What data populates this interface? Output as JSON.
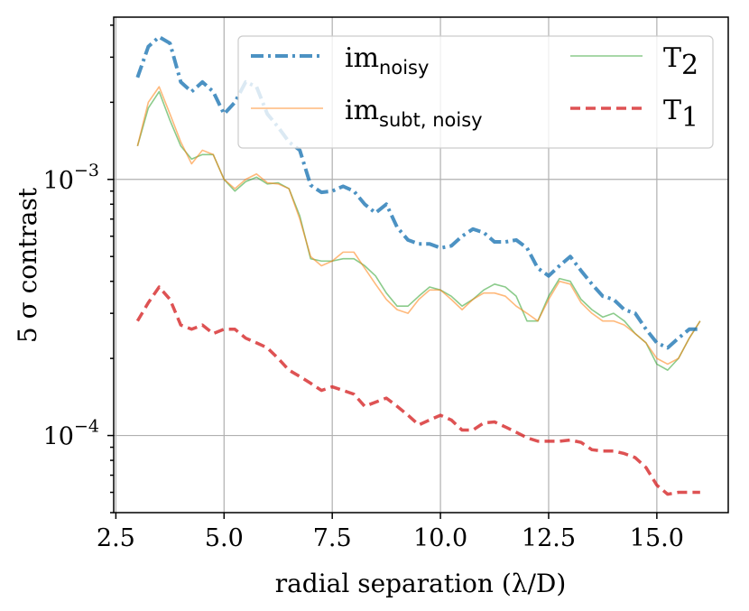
{
  "chart_data": {
    "type": "line",
    "yscale": "log",
    "xlabel": "radial separation (λ/D)",
    "ylabel": "5 σ contrast",
    "xlim": [
      2.45,
      16.65
    ],
    "ylim": [
      5e-05,
      0.0043
    ],
    "x_ticks": [
      {
        "value": 2.5,
        "label": "2.5"
      },
      {
        "value": 5.0,
        "label": "5.0"
      },
      {
        "value": 7.5,
        "label": "7.5"
      },
      {
        "value": 10.0,
        "label": "10.0"
      },
      {
        "value": 12.5,
        "label": "12.5"
      },
      {
        "value": 15.0,
        "label": "15.0"
      }
    ],
    "y_major_ticks": [
      {
        "value": 0.0001,
        "base": "10",
        "exp": "−4"
      },
      {
        "value": 0.001,
        "base": "10",
        "exp": "−3"
      }
    ],
    "y_minor_ticks": [
      5e-05,
      6e-05,
      7e-05,
      8e-05,
      9e-05,
      0.0002,
      0.0003,
      0.0004,
      0.0005,
      0.0006,
      0.0007,
      0.0008,
      0.0009,
      0.002,
      0.003,
      0.004
    ],
    "grid": true,
    "legend_location": "top-right",
    "x": [
      3.0,
      3.25,
      3.5,
      3.75,
      4.0,
      4.25,
      4.5,
      4.75,
      5.0,
      5.25,
      5.5,
      5.75,
      6.0,
      6.25,
      6.5,
      6.75,
      7.0,
      7.25,
      7.5,
      7.75,
      8.0,
      8.25,
      8.5,
      8.75,
      9.0,
      9.25,
      9.5,
      9.75,
      10.0,
      10.25,
      10.5,
      10.75,
      11.0,
      11.25,
      11.5,
      11.75,
      12.0,
      12.25,
      12.5,
      12.75,
      13.0,
      13.25,
      13.5,
      13.75,
      14.0,
      14.25,
      14.5,
      14.75,
      15.0,
      15.25,
      15.5,
      15.75,
      16.0
    ],
    "series": [
      {
        "name": "im",
        "subscript": "noisy",
        "color": "#1f77b4",
        "style": "dashdot",
        "values": [
          0.0025,
          0.0033,
          0.0036,
          0.0034,
          0.0024,
          0.0022,
          0.0024,
          0.0022,
          0.0018,
          0.002,
          0.0024,
          0.0023,
          0.0018,
          0.0016,
          0.0014,
          0.0013,
          0.00095,
          0.00089,
          0.0009,
          0.00094,
          0.0009,
          0.0008,
          0.00074,
          0.0008,
          0.00065,
          0.00058,
          0.00056,
          0.00056,
          0.00054,
          0.00055,
          0.0006,
          0.00064,
          0.00062,
          0.00057,
          0.00057,
          0.00058,
          0.00054,
          0.00045,
          0.00042,
          0.00046,
          0.0005,
          0.00044,
          0.00039,
          0.00035,
          0.00034,
          0.00031,
          0.0003,
          0.00026,
          0.00023,
          0.00022,
          0.00024,
          0.00026,
          0.00026
        ]
      },
      {
        "name": "im",
        "subscript": "subt, noisy",
        "color": "#ff7f0e",
        "style": "solid",
        "values": [
          0.00135,
          0.002,
          0.0023,
          0.0018,
          0.0014,
          0.00115,
          0.0013,
          0.00125,
          0.001,
          0.00092,
          0.001,
          0.00105,
          0.00097,
          0.00096,
          0.00092,
          0.0007,
          0.0005,
          0.00046,
          0.00048,
          0.00052,
          0.00052,
          0.00045,
          0.00039,
          0.00034,
          0.00031,
          0.0003,
          0.00034,
          0.00037,
          0.00037,
          0.00034,
          0.00031,
          0.00034,
          0.00036,
          0.00036,
          0.00035,
          0.00032,
          0.0003,
          0.00028,
          0.00034,
          0.0004,
          0.00039,
          0.00033,
          0.0003,
          0.00028,
          0.00028,
          0.00027,
          0.00025,
          0.00023,
          0.0002,
          0.00019,
          0.0002,
          0.00024,
          0.00028
        ]
      },
      {
        "name": "T",
        "subscript": "2",
        "color": "#2ca02c",
        "style": "solid",
        "values": [
          0.00135,
          0.0019,
          0.0022,
          0.0017,
          0.00135,
          0.0012,
          0.00125,
          0.00125,
          0.001,
          0.0009,
          0.00098,
          0.00102,
          0.00096,
          0.00097,
          0.00092,
          0.00072,
          0.00049,
          0.00048,
          0.00048,
          0.00049,
          0.00049,
          0.00046,
          0.00042,
          0.00036,
          0.00032,
          0.00032,
          0.00035,
          0.00038,
          0.00037,
          0.00035,
          0.00032,
          0.00034,
          0.00037,
          0.00039,
          0.00038,
          0.00035,
          0.00028,
          0.00028,
          0.00035,
          0.00041,
          0.0004,
          0.00034,
          0.00031,
          0.00029,
          0.0003,
          0.00028,
          0.00025,
          0.00023,
          0.00019,
          0.00018,
          0.0002,
          0.00024,
          0.00028
        ]
      },
      {
        "name": "T",
        "subscript": "1",
        "color": "#d62728",
        "style": "dashed",
        "values": [
          0.00028,
          0.00033,
          0.00038,
          0.00034,
          0.00027,
          0.00026,
          0.00027,
          0.00025,
          0.00026,
          0.00026,
          0.00024,
          0.00023,
          0.00022,
          0.0002,
          0.00018,
          0.00017,
          0.00016,
          0.00015,
          0.000155,
          0.00015,
          0.000145,
          0.00013,
          0.000135,
          0.00014,
          0.00013,
          0.00012,
          0.00011,
          0.000115,
          0.00012,
          0.000115,
          0.000105,
          0.000105,
          0.000112,
          0.000113,
          0.000108,
          0.000103,
          9.8e-05,
          9.5e-05,
          9.5e-05,
          9.5e-05,
          9.6e-05,
          9.4e-05,
          8.8e-05,
          8.7e-05,
          8.7e-05,
          8.5e-05,
          8.2e-05,
          7.5e-05,
          6.4e-05,
          5.9e-05,
          6e-05,
          6e-05,
          6e-05
        ]
      }
    ]
  }
}
